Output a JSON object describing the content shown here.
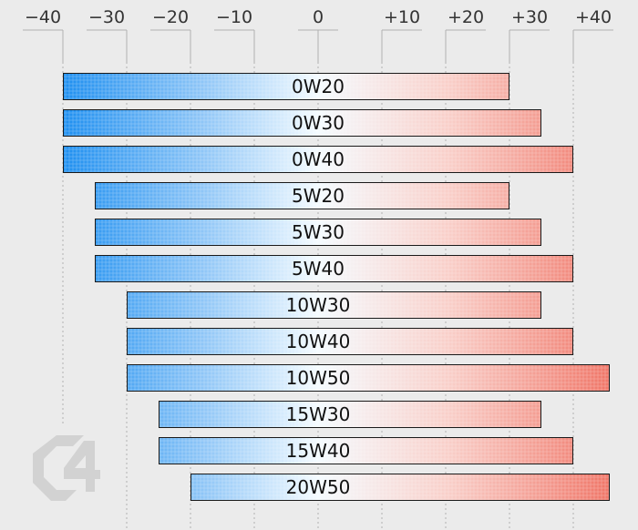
{
  "chart_data": {
    "type": "bar",
    "orientation": "horizontal-range",
    "title": "",
    "xlabel": "",
    "ylabel": "",
    "xlim": [
      -40,
      45
    ],
    "grid": "vertical-dashed",
    "ticks": [
      {
        "value": -40,
        "label": "−40"
      },
      {
        "value": -30,
        "label": "−30"
      },
      {
        "value": -20,
        "label": "−20"
      },
      {
        "value": -10,
        "label": "−10"
      },
      {
        "value": 0,
        "label": "0"
      },
      {
        "value": 10,
        "label": "+10"
      },
      {
        "value": 20,
        "label": "+20"
      },
      {
        "value": 30,
        "label": "+30"
      },
      {
        "value": 40,
        "label": "+40"
      }
    ],
    "categories": [
      "0W20",
      "0W30",
      "0W40",
      "5W20",
      "5W30",
      "5W40",
      "10W30",
      "10W40",
      "10W50",
      "15W30",
      "15W40",
      "20W50"
    ],
    "ranges": [
      [
        -40,
        30
      ],
      [
        -40,
        35
      ],
      [
        -40,
        40
      ],
      [
        -35,
        30
      ],
      [
        -35,
        35
      ],
      [
        -35,
        40
      ],
      [
        -30,
        35
      ],
      [
        -30,
        40
      ],
      [
        -30,
        46
      ],
      [
        -25,
        35
      ],
      [
        -25,
        40
      ],
      [
        -20,
        46
      ]
    ],
    "colors": {
      "cold": "#1e8ff0",
      "neutral": "#f4fbff",
      "warm": "#f0786a",
      "grid": "#b0b0b0",
      "background": "#ebebeb"
    },
    "logo_icon": "c4-logo-icon"
  }
}
